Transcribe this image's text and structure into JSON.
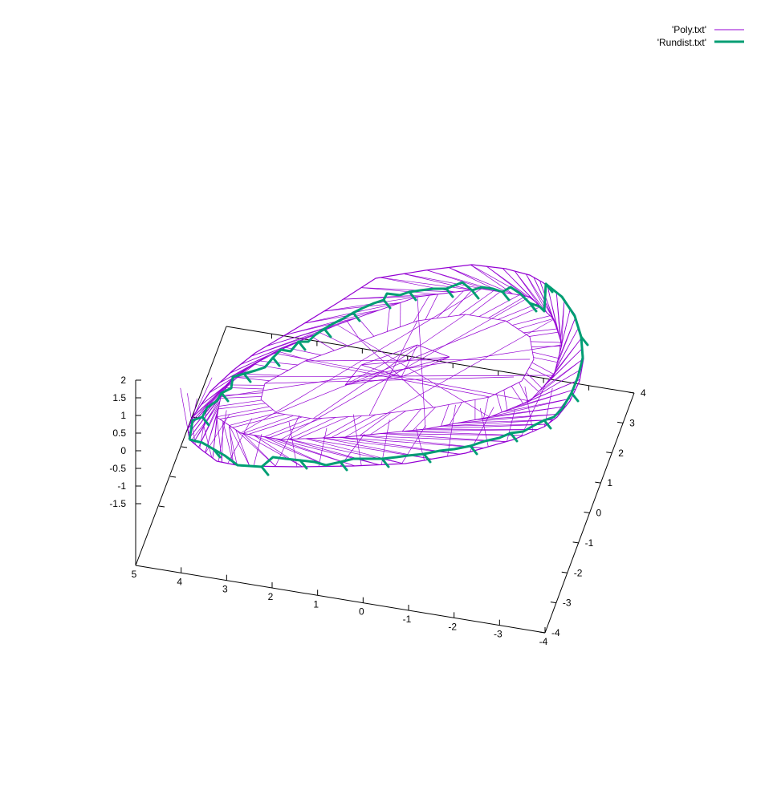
{
  "chart_data": {
    "type": "3d-wireframe",
    "title": "",
    "xlabel": "",
    "ylabel": "",
    "zlabel": "",
    "xlim": [
      -4,
      5
    ],
    "ylim": [
      -4,
      4
    ],
    "zlim": [
      -4,
      2
    ],
    "x_ticks": [
      "5",
      "4",
      "3",
      "2",
      "1",
      "0",
      "-1",
      "-2",
      "-3",
      "-4"
    ],
    "y_ticks": [
      "-4",
      "-3",
      "-2",
      "-1",
      "0",
      "1",
      "2",
      "3",
      "4"
    ],
    "z_ticks": [
      "2",
      "1.5",
      "1",
      "0.5",
      "0",
      "-0.5",
      "-1",
      "-1.5"
    ],
    "legend_position": "top-right",
    "series": [
      {
        "name": "'Poly.txt'",
        "color": "#9400D3",
        "style": "thin wireframe mesh"
      },
      {
        "name": "'Rundist.txt'",
        "color": "#009E73",
        "style": "thick zig-zag girdle line"
      }
    ]
  },
  "legend": {
    "items": [
      {
        "label": "'Poly.txt'",
        "color": "#9400D3"
      },
      {
        "label": "'Rundist.txt'",
        "color": "#009E73"
      }
    ]
  }
}
